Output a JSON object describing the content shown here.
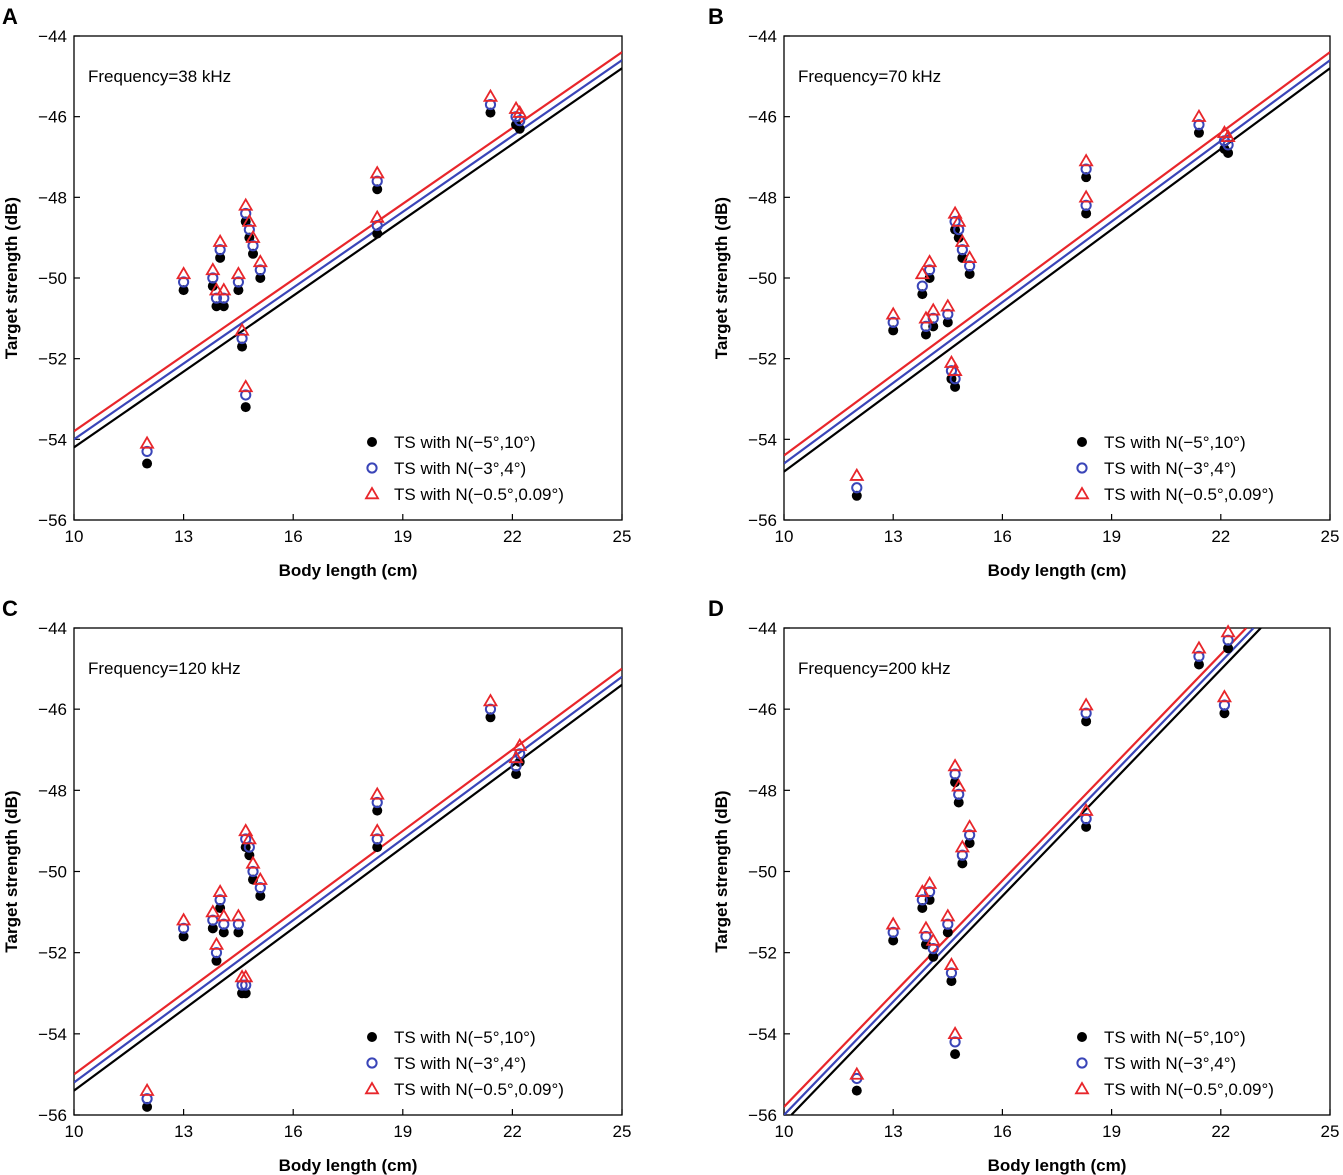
{
  "colors": {
    "black": "#000000",
    "blue": "#3a45b8",
    "red": "#e8262b"
  },
  "legend_labels": [
    "TS with N(−5°,10°)",
    "TS with N(−3°,4°)",
    "TS with N(−0.5°,0.09°)"
  ],
  "chart_data": [
    {
      "panel": "A",
      "type": "scatter",
      "annotation": "Frequency=38 kHz",
      "xlabel": "Body length (cm)",
      "ylabel": "Target strength (dB)",
      "xlim": [
        10,
        25
      ],
      "ylim": [
        -56,
        -44
      ],
      "xticks": [
        10,
        13,
        16,
        19,
        22,
        25
      ],
      "xtick_labels": [
        "10",
        "13",
        "16",
        "19",
        "22",
        "25"
      ],
      "yticks": [
        -56,
        -54,
        -52,
        -50,
        -48,
        -46,
        -44
      ],
      "ytick_labels": [
        "−56",
        "−54",
        "−52",
        "−50",
        "−48",
        "−46",
        "−44"
      ],
      "legend_position": "bottom-right",
      "x": [
        12.0,
        13.0,
        13.8,
        13.9,
        14.0,
        14.1,
        14.5,
        14.6,
        14.7,
        14.7,
        14.8,
        14.9,
        15.1,
        18.3,
        18.3,
        21.4,
        22.1,
        22.2
      ],
      "series": [
        {
          "name": "TS with N(−5°,10°)",
          "marker": "dot",
          "color": "#000000",
          "values": [
            -54.6,
            -50.3,
            -50.2,
            -50.7,
            -49.5,
            -50.7,
            -50.3,
            -51.7,
            -53.2,
            -48.6,
            -49.0,
            -49.4,
            -50.0,
            -47.8,
            -48.9,
            -45.9,
            -46.2,
            -46.3
          ],
          "fit": [
            [
              10,
              -54.2
            ],
            [
              25,
              -44.8
            ]
          ]
        },
        {
          "name": "TS with N(−3°,4°)",
          "marker": "circle",
          "color": "#3a45b8",
          "values": [
            -54.3,
            -50.1,
            -50.0,
            -50.5,
            -49.3,
            -50.5,
            -50.1,
            -51.5,
            -52.9,
            -48.4,
            -48.8,
            -49.2,
            -49.8,
            -47.6,
            -48.7,
            -45.7,
            -46.0,
            -46.1
          ],
          "fit": [
            [
              10,
              -54.0
            ],
            [
              25,
              -44.6
            ]
          ]
        },
        {
          "name": "TS with N(−0.5°,0.09°)",
          "marker": "triangle",
          "color": "#e8262b",
          "values": [
            -54.1,
            -49.9,
            -49.8,
            -50.3,
            -49.1,
            -50.3,
            -49.9,
            -51.3,
            -52.7,
            -48.2,
            -48.6,
            -49.0,
            -49.6,
            -47.4,
            -48.5,
            -45.5,
            -45.8,
            -45.9
          ],
          "fit": [
            [
              10,
              -53.8
            ],
            [
              25,
              -44.4
            ]
          ]
        }
      ]
    },
    {
      "panel": "B",
      "type": "scatter",
      "annotation": "Frequency=70 kHz",
      "xlabel": "Body length (cm)",
      "ylabel": "Target strength (dB)",
      "xlim": [
        10,
        25
      ],
      "ylim": [
        -56,
        -44
      ],
      "xticks": [
        10,
        13,
        16,
        19,
        22,
        25
      ],
      "xtick_labels": [
        "10",
        "13",
        "16",
        "19",
        "22",
        "25"
      ],
      "yticks": [
        -56,
        -54,
        -52,
        -50,
        -48,
        -46,
        -44
      ],
      "ytick_labels": [
        "−56",
        "−54",
        "−52",
        "−50",
        "−48",
        "−46",
        "−44"
      ],
      "legend_position": "bottom-right",
      "x": [
        12.0,
        13.0,
        13.8,
        13.9,
        14.0,
        14.1,
        14.5,
        14.6,
        14.7,
        14.7,
        14.8,
        14.9,
        15.1,
        18.3,
        18.3,
        21.4,
        22.1,
        22.2
      ],
      "series": [
        {
          "name": "TS with N(−5°,10°)",
          "marker": "dot",
          "color": "#000000",
          "values": [
            -55.4,
            -51.3,
            -50.4,
            -51.4,
            -50.0,
            -51.2,
            -51.1,
            -52.5,
            -52.7,
            -48.8,
            -49.0,
            -49.5,
            -49.9,
            -47.5,
            -48.4,
            -46.4,
            -46.8,
            -46.9
          ],
          "fit": [
            [
              10,
              -54.8
            ],
            [
              25,
              -44.8
            ]
          ]
        },
        {
          "name": "TS with N(−3°,4°)",
          "marker": "circle",
          "color": "#3a45b8",
          "values": [
            -55.2,
            -51.1,
            -50.2,
            -51.2,
            -49.8,
            -51.0,
            -50.9,
            -52.3,
            -52.5,
            -48.6,
            -48.8,
            -49.3,
            -49.7,
            -47.3,
            -48.2,
            -46.2,
            -46.6,
            -46.7
          ],
          "fit": [
            [
              10,
              -54.6
            ],
            [
              25,
              -44.6
            ]
          ]
        },
        {
          "name": "TS with N(−0.5°,0.09°)",
          "marker": "triangle",
          "color": "#e8262b",
          "values": [
            -54.9,
            -50.9,
            -49.9,
            -51.0,
            -49.6,
            -50.8,
            -50.7,
            -52.1,
            -52.3,
            -48.4,
            -48.6,
            -49.1,
            -49.5,
            -47.1,
            -48.0,
            -46.0,
            -46.4,
            -46.5
          ],
          "fit": [
            [
              10,
              -54.4
            ],
            [
              25,
              -44.4
            ]
          ]
        }
      ]
    },
    {
      "panel": "C",
      "type": "scatter",
      "annotation": "Frequency=120 kHz",
      "xlabel": "Body length (cm)",
      "ylabel": "Target strength (dB)",
      "xlim": [
        10,
        25
      ],
      "ylim": [
        -56,
        -44
      ],
      "xticks": [
        10,
        13,
        16,
        19,
        22,
        25
      ],
      "xtick_labels": [
        "10",
        "13",
        "16",
        "19",
        "22",
        "25"
      ],
      "yticks": [
        -56,
        -54,
        -52,
        -50,
        -48,
        -46,
        -44
      ],
      "ytick_labels": [
        "−56",
        "−54",
        "−52",
        "−50",
        "−48",
        "−46",
        "−44"
      ],
      "legend_position": "bottom-right",
      "x": [
        12.0,
        13.0,
        13.8,
        13.9,
        14.0,
        14.1,
        14.5,
        14.6,
        14.7,
        14.7,
        14.8,
        14.9,
        15.1,
        18.3,
        18.3,
        21.4,
        22.1,
        22.2
      ],
      "series": [
        {
          "name": "TS with N(−5°,10°)",
          "marker": "dot",
          "color": "#000000",
          "values": [
            -55.8,
            -51.6,
            -51.4,
            -52.2,
            -50.9,
            -51.5,
            -51.5,
            -53.0,
            -53.0,
            -49.4,
            -49.6,
            -50.2,
            -50.6,
            -48.5,
            -49.4,
            -46.2,
            -47.6,
            -47.3
          ],
          "fit": [
            [
              10,
              -55.4
            ],
            [
              25,
              -45.4
            ]
          ]
        },
        {
          "name": "TS with N(−3°,4°)",
          "marker": "circle",
          "color": "#3a45b8",
          "values": [
            -55.6,
            -51.4,
            -51.2,
            -52.0,
            -50.7,
            -51.3,
            -51.3,
            -52.8,
            -52.8,
            -49.2,
            -49.4,
            -50.0,
            -50.4,
            -48.3,
            -49.2,
            -46.0,
            -47.4,
            -47.1
          ],
          "fit": [
            [
              10,
              -55.2
            ],
            [
              25,
              -45.2
            ]
          ]
        },
        {
          "name": "TS with N(−0.5°,0.09°)",
          "marker": "triangle",
          "color": "#e8262b",
          "values": [
            -55.4,
            -51.2,
            -51.0,
            -51.8,
            -50.5,
            -51.1,
            -51.1,
            -52.6,
            -52.6,
            -49.0,
            -49.2,
            -49.8,
            -50.2,
            -48.1,
            -49.0,
            -45.8,
            -47.2,
            -46.9
          ],
          "fit": [
            [
              10,
              -55.0
            ],
            [
              25,
              -45.0
            ]
          ]
        }
      ]
    },
    {
      "panel": "D",
      "type": "scatter",
      "annotation": "Frequency=200 kHz",
      "xlabel": "Body length (cm)",
      "ylabel": "Target strength (dB)",
      "xlim": [
        10,
        25
      ],
      "ylim": [
        -56,
        -44
      ],
      "xticks": [
        10,
        13,
        16,
        19,
        22,
        25
      ],
      "xtick_labels": [
        "10",
        "13",
        "16",
        "19",
        "22",
        "25"
      ],
      "yticks": [
        -56,
        -54,
        -52,
        -50,
        -48,
        -46,
        -44
      ],
      "ytick_labels": [
        "−56",
        "−54",
        "−52",
        "−50",
        "−48",
        "−46",
        "−44"
      ],
      "legend_position": "bottom-right",
      "x": [
        12.0,
        13.0,
        13.8,
        13.9,
        14.0,
        14.1,
        14.5,
        14.6,
        14.7,
        14.7,
        14.8,
        14.9,
        15.1,
        18.3,
        18.3,
        21.4,
        22.1,
        22.2
      ],
      "series": [
        {
          "name": "TS with N(−5°,10°)",
          "marker": "dot",
          "color": "#000000",
          "values": [
            -55.4,
            -51.7,
            -50.9,
            -51.8,
            -50.7,
            -52.1,
            -51.5,
            -52.7,
            -54.5,
            -47.8,
            -48.3,
            -49.8,
            -49.3,
            -46.3,
            -48.9,
            -44.9,
            -46.1,
            -44.5
          ],
          "fit": [
            [
              10.2,
              -56.0
            ],
            [
              23.1,
              -44.0
            ]
          ]
        },
        {
          "name": "TS with N(−3°,4°)",
          "marker": "circle",
          "color": "#3a45b8",
          "values": [
            -55.1,
            -51.5,
            -50.7,
            -51.6,
            -50.5,
            -51.9,
            -51.3,
            -52.5,
            -54.2,
            -47.6,
            -48.1,
            -49.6,
            -49.1,
            -46.1,
            -48.7,
            -44.7,
            -45.9,
            -44.3
          ],
          "fit": [
            [
              10.0,
              -56.0
            ],
            [
              22.9,
              -44.0
            ]
          ]
        },
        {
          "name": "TS with N(−0.5°,0.09°)",
          "marker": "triangle",
          "color": "#e8262b",
          "values": [
            -55.0,
            -51.3,
            -50.5,
            -51.4,
            -50.3,
            -51.7,
            -51.1,
            -52.3,
            -54.0,
            -47.4,
            -47.9,
            -49.4,
            -48.9,
            -45.9,
            -48.5,
            -44.5,
            -45.7,
            -44.1
          ],
          "fit": [
            [
              10.0,
              -55.8
            ],
            [
              22.7,
              -44.0
            ]
          ]
        }
      ]
    }
  ]
}
